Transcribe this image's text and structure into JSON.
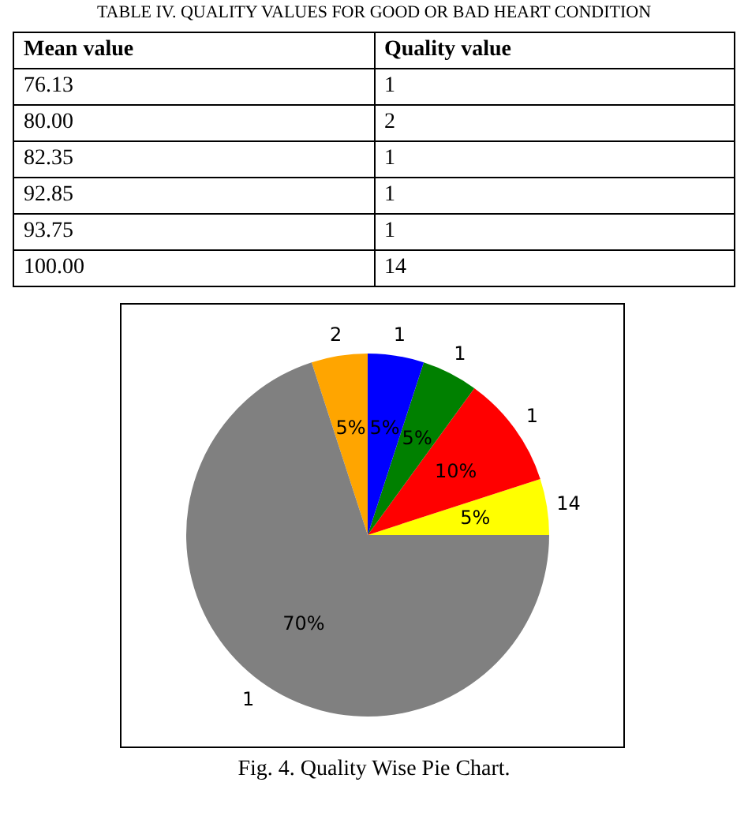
{
  "chart_data": [
    {
      "type": "other",
      "title": "TABLE IV.    QUALITY VALUES FOR GOOD OR BAD HEART CONDITION",
      "categories": [
        "Mean value",
        "Quality value"
      ],
      "annotations": [
        "76.13",
        "1",
        "80.00",
        "2",
        "82.35",
        "1",
        "92.85",
        "1",
        "93.75",
        "1",
        "100.00",
        "14"
      ]
    },
    {
      "type": "pie",
      "categories": [
        "2",
        "1",
        "14",
        "1",
        "1",
        "1"
      ],
      "values": [
        5,
        70,
        5,
        10,
        5,
        5
      ],
      "colors": [
        "#ffa500",
        "#808080",
        "#ffff00",
        "#ff0000",
        "#008000",
        "#0000ff"
      ],
      "value_labels": [
        "5%",
        "70%",
        "5%",
        "10%",
        "5%",
        "5%"
      ],
      "annotations": [
        "Fig. 4.    Quality Wise Pie Chart."
      ]
    }
  ]
}
